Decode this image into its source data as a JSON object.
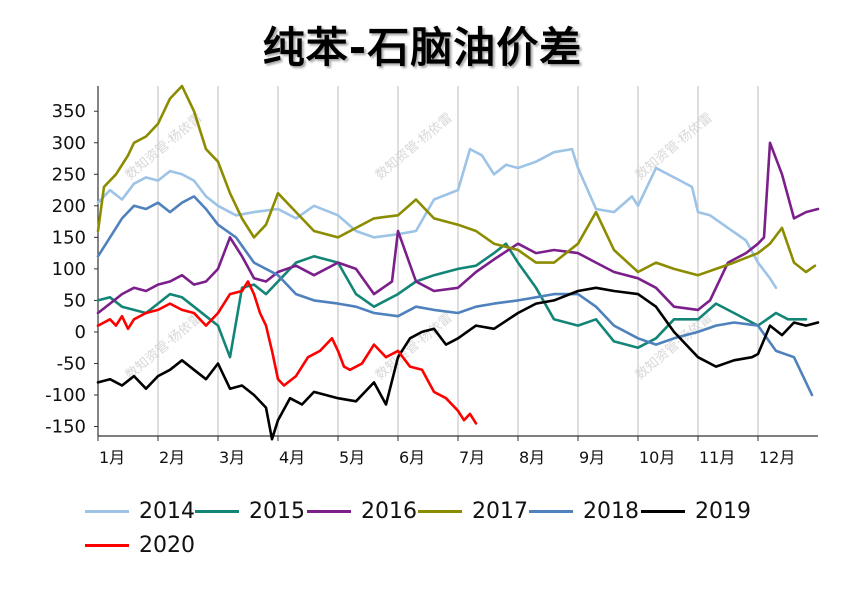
{
  "chart_data": {
    "type": "line",
    "title": "纯苯-石脑油价差",
    "xlabel": "",
    "ylabel": "",
    "x_categories": [
      "1月",
      "2月",
      "3月",
      "4月",
      "5月",
      "6月",
      "7月",
      "8月",
      "9月",
      "10月",
      "11月",
      "12月"
    ],
    "ylim": [
      -165,
      390
    ],
    "yticks": [
      -150,
      -100,
      -50,
      0,
      50,
      100,
      150,
      200,
      250,
      300,
      350
    ],
    "grid": "vertical",
    "legend_position": "bottom",
    "series": [
      {
        "name": "2014",
        "color": "#9DC3E6",
        "x": [
          1,
          1.2,
          1.4,
          1.6,
          1.8,
          2,
          2.2,
          2.4,
          2.6,
          2.8,
          3,
          3.3,
          3.6,
          4,
          4.3,
          4.6,
          5,
          5.3,
          5.6,
          6,
          6.3,
          6.6,
          7,
          7.2,
          7.4,
          7.6,
          7.8,
          8,
          8.3,
          8.6,
          8.9,
          9,
          9.3,
          9.6,
          9.9,
          10,
          10.3,
          10.6,
          10.9,
          11,
          11.2,
          11.5,
          11.8,
          12,
          12.2,
          12.3
        ],
        "y": [
          205,
          225,
          210,
          235,
          245,
          240,
          255,
          250,
          240,
          215,
          200,
          185,
          190,
          195,
          180,
          200,
          185,
          160,
          150,
          155,
          160,
          210,
          225,
          290,
          280,
          250,
          265,
          260,
          270,
          285,
          290,
          260,
          195,
          190,
          215,
          200,
          260,
          245,
          230,
          190,
          185,
          165,
          145,
          110,
          85,
          70
        ]
      },
      {
        "name": "2015",
        "color": "#138577",
        "x": [
          1,
          1.2,
          1.4,
          1.6,
          1.8,
          2,
          2.2,
          2.4,
          2.6,
          2.8,
          3,
          3.2,
          3.4,
          3.6,
          3.8,
          4,
          4.3,
          4.6,
          5,
          5.3,
          5.6,
          6,
          6.3,
          6.6,
          7,
          7.3,
          7.6,
          7.8,
          8,
          8.3,
          8.6,
          9,
          9.3,
          9.6,
          10,
          10.3,
          10.6,
          11,
          11.3,
          11.6,
          12,
          12.3,
          12.5,
          12.8
        ],
        "y": [
          50,
          55,
          40,
          35,
          30,
          45,
          60,
          55,
          40,
          25,
          10,
          -40,
          70,
          75,
          60,
          80,
          110,
          120,
          110,
          60,
          40,
          60,
          80,
          90,
          100,
          105,
          125,
          140,
          110,
          70,
          20,
          10,
          20,
          -15,
          -25,
          -10,
          20,
          20,
          45,
          30,
          10,
          30,
          20,
          20
        ]
      },
      {
        "name": "2016",
        "color": "#7B1F8A",
        "x": [
          1,
          1.2,
          1.4,
          1.6,
          1.8,
          2,
          2.2,
          2.4,
          2.6,
          2.8,
          3,
          3.2,
          3.4,
          3.6,
          3.8,
          4,
          4.3,
          4.6,
          5,
          5.3,
          5.6,
          5.9,
          6,
          6.3,
          6.6,
          7,
          7.3,
          7.6,
          8,
          8.3,
          8.6,
          9,
          9.3,
          9.6,
          10,
          10.3,
          10.6,
          11,
          11.2,
          11.5,
          11.8,
          12,
          12.1,
          12.2,
          12.4,
          12.6,
          12.8,
          13
        ],
        "y": [
          30,
          45,
          60,
          70,
          65,
          75,
          80,
          90,
          75,
          80,
          100,
          150,
          120,
          85,
          80,
          95,
          105,
          90,
          110,
          100,
          60,
          80,
          160,
          80,
          65,
          70,
          95,
          115,
          140,
          125,
          130,
          125,
          110,
          95,
          85,
          70,
          40,
          35,
          50,
          110,
          125,
          140,
          150,
          300,
          250,
          180,
          190,
          195
        ]
      },
      {
        "name": "2017",
        "color": "#8C8C00",
        "x": [
          1,
          1.1,
          1.3,
          1.5,
          1.6,
          1.8,
          2,
          2.2,
          2.4,
          2.6,
          2.8,
          3,
          3.2,
          3.4,
          3.6,
          3.8,
          4,
          4.3,
          4.6,
          5,
          5.3,
          5.6,
          6,
          6.3,
          6.6,
          7,
          7.3,
          7.6,
          8,
          8.3,
          8.6,
          9,
          9.3,
          9.6,
          10,
          10.3,
          10.6,
          11,
          11.3,
          11.6,
          12,
          12.2,
          12.4,
          12.6,
          12.8,
          12.95
        ],
        "y": [
          160,
          230,
          250,
          280,
          300,
          310,
          330,
          370,
          390,
          350,
          290,
          270,
          220,
          180,
          150,
          170,
          220,
          190,
          160,
          150,
          165,
          180,
          185,
          210,
          180,
          170,
          160,
          140,
          130,
          110,
          110,
          140,
          190,
          130,
          95,
          110,
          100,
          90,
          100,
          110,
          125,
          140,
          165,
          110,
          95,
          105
        ]
      },
      {
        "name": "2018",
        "color": "#4F81BD",
        "x": [
          1,
          1.2,
          1.4,
          1.6,
          1.8,
          2,
          2.2,
          2.4,
          2.6,
          2.8,
          3,
          3.3,
          3.6,
          4,
          4.3,
          4.6,
          5,
          5.3,
          5.6,
          6,
          6.3,
          6.6,
          7,
          7.3,
          7.6,
          8,
          8.3,
          8.6,
          9,
          9.3,
          9.6,
          10,
          10.3,
          10.6,
          11,
          11.3,
          11.6,
          12,
          12.3,
          12.6,
          12.9
        ],
        "y": [
          120,
          150,
          180,
          200,
          195,
          205,
          190,
          205,
          215,
          195,
          170,
          150,
          110,
          90,
          60,
          50,
          45,
          40,
          30,
          25,
          40,
          35,
          30,
          40,
          45,
          50,
          55,
          60,
          60,
          40,
          10,
          -10,
          -20,
          -10,
          0,
          10,
          15,
          10,
          -30,
          -40,
          -100
        ]
      },
      {
        "name": "2019",
        "color": "#000000",
        "x": [
          1,
          1.2,
          1.4,
          1.6,
          1.8,
          2,
          2.2,
          2.4,
          2.6,
          2.8,
          3,
          3.2,
          3.4,
          3.6,
          3.8,
          3.9,
          4,
          4.2,
          4.4,
          4.6,
          5,
          5.3,
          5.6,
          5.8,
          6,
          6.2,
          6.4,
          6.6,
          6.8,
          7,
          7.3,
          7.6,
          8,
          8.3,
          8.6,
          9,
          9.3,
          9.6,
          10,
          10.3,
          10.6,
          11,
          11.3,
          11.6,
          11.9,
          12,
          12.2,
          12.4,
          12.6,
          12.8,
          13
        ],
        "y": [
          -80,
          -75,
          -85,
          -70,
          -90,
          -70,
          -60,
          -45,
          -60,
          -75,
          -50,
          -90,
          -85,
          -100,
          -120,
          -170,
          -140,
          -105,
          -115,
          -95,
          -105,
          -110,
          -80,
          -115,
          -40,
          -10,
          0,
          5,
          -20,
          -10,
          10,
          5,
          30,
          45,
          50,
          65,
          70,
          65,
          60,
          40,
          0,
          -40,
          -55,
          -45,
          -40,
          -35,
          10,
          -5,
          15,
          10,
          15
        ]
      },
      {
        "name": "2020",
        "color": "#FF0000",
        "x": [
          1,
          1.1,
          1.2,
          1.3,
          1.4,
          1.5,
          1.6,
          1.8,
          2,
          2.2,
          2.4,
          2.6,
          2.8,
          3,
          3.2,
          3.4,
          3.5,
          3.6,
          3.7,
          3.8,
          3.9,
          4,
          4.1,
          4.3,
          4.5,
          4.7,
          4.9,
          5,
          5.1,
          5.2,
          5.4,
          5.6,
          5.8,
          6,
          6.2,
          6.4,
          6.6,
          6.8,
          7,
          7.1,
          7.2,
          7.3
        ],
        "y": [
          10,
          15,
          20,
          10,
          25,
          5,
          20,
          30,
          35,
          45,
          35,
          30,
          10,
          30,
          60,
          65,
          80,
          60,
          30,
          10,
          -30,
          -75,
          -85,
          -70,
          -40,
          -30,
          -10,
          -30,
          -55,
          -60,
          -50,
          -20,
          -40,
          -30,
          -55,
          -60,
          -95,
          -105,
          -125,
          -140,
          -130,
          -145
        ]
      }
    ]
  }
}
